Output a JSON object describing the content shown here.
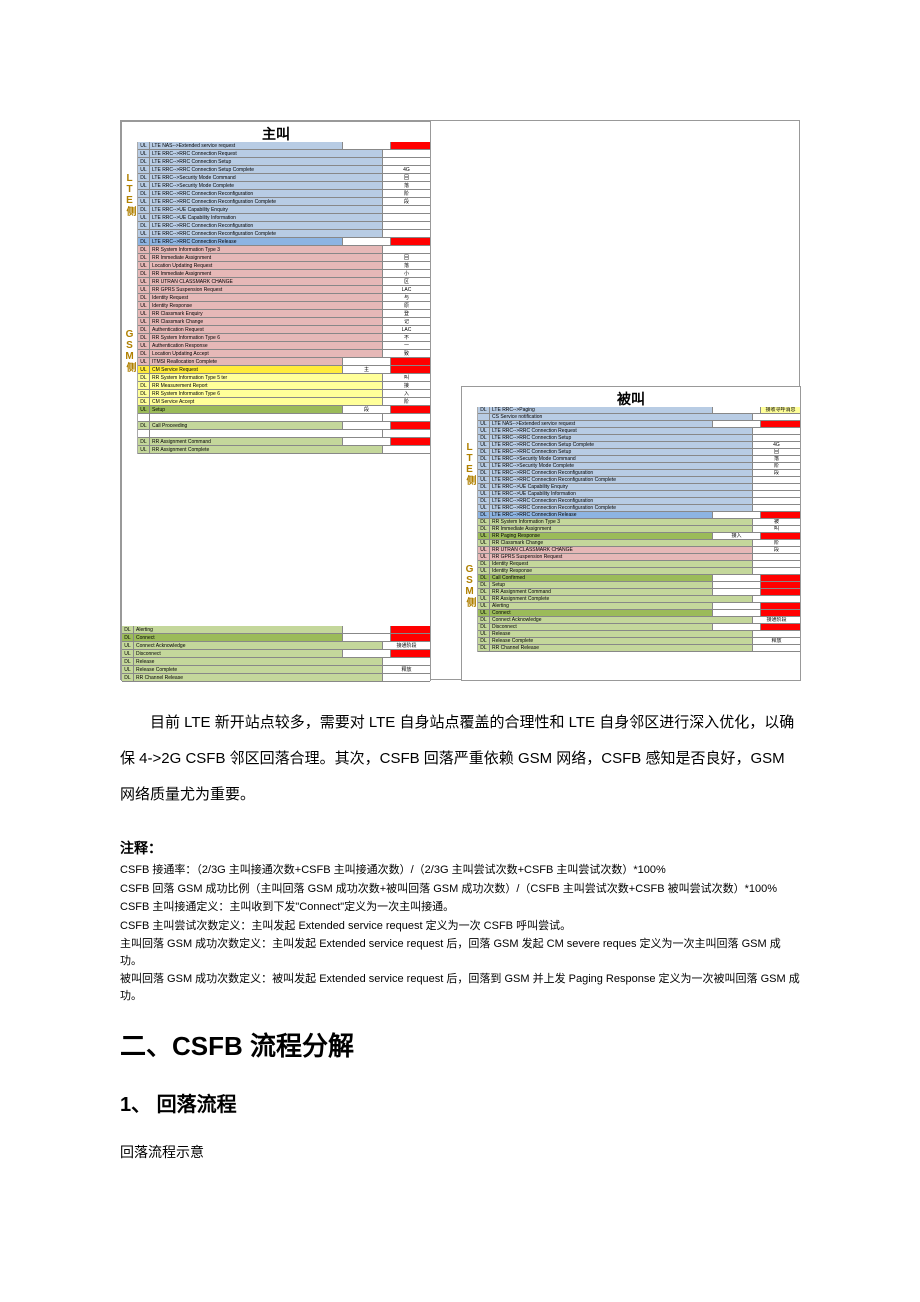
{
  "colors": {
    "blue": "#b8cce4",
    "bluedeep": "#8db4e2",
    "green": "#c4d79b",
    "greendeep": "#9bbb59",
    "pink": "#e6b8b7",
    "yellow": "#ffff99",
    "yelloworange": "#ffeb3b",
    "red": "#ff0000",
    "white": "#ffffff",
    "label_gold": "#b08000"
  },
  "caller": {
    "title": "主叫",
    "lte_label": "LTE侧",
    "gsm_label": "GSM侧",
    "lte_rows": [
      {
        "dir": "UL",
        "msg": "LTE NAS-->Extended service request",
        "c": "blue",
        "badge": "",
        "bc": "red",
        "phase": ""
      },
      {
        "dir": "UL",
        "msg": "LTE RRC-->RRC Connection Request",
        "c": "blue",
        "phase": ""
      },
      {
        "dir": "DL",
        "msg": "LTE RRC-->RRC Connection Setup",
        "c": "blue",
        "phase": ""
      },
      {
        "dir": "UL",
        "msg": "LTE RRC-->RRC Connection Setup Complete",
        "c": "blue",
        "phase": "4G"
      },
      {
        "dir": "DL",
        "msg": "LTE RRC-->Security Mode Command",
        "c": "blue",
        "phase": "回"
      },
      {
        "dir": "UL",
        "msg": "LTE RRC-->Security Mode Complete",
        "c": "blue",
        "phase": "落"
      },
      {
        "dir": "DL",
        "msg": "LTE RRC-->RRC Connection Reconfiguration",
        "c": "blue",
        "phase": "阶"
      },
      {
        "dir": "UL",
        "msg": "LTE RRC-->RRC Connection Reconfiguration Complete",
        "c": "blue",
        "phase": "段"
      },
      {
        "dir": "DL",
        "msg": "LTE RRC-->UE Capability Enquiry",
        "c": "blue",
        "phase": ""
      },
      {
        "dir": "UL",
        "msg": "LTE RRC-->UE Capability Information",
        "c": "blue",
        "phase": ""
      },
      {
        "dir": "DL",
        "msg": "LTE RRC-->RRC Connection Reconfiguration",
        "c": "blue",
        "phase": ""
      },
      {
        "dir": "UL",
        "msg": "LTE RRC-->RRC Connection Reconfiguration Complete",
        "c": "blue",
        "phase": ""
      },
      {
        "dir": "DL",
        "msg": "LTE RRC-->RRC Connection Release",
        "c": "bluedeep",
        "badge": "",
        "bc": "red",
        "phase": ""
      }
    ],
    "gsm_rows": [
      {
        "dir": "DL",
        "msg": "RR System Information Type 3",
        "c": "pink",
        "phase": ""
      },
      {
        "dir": "DL",
        "msg": "RR Immediate Assignment",
        "c": "pink",
        "phase": "回"
      },
      {
        "dir": "UL",
        "msg": "Location Updating Request",
        "c": "pink",
        "phase": "落"
      },
      {
        "dir": "DL",
        "msg": "RR Immediate Assignment",
        "c": "pink",
        "phase": "小"
      },
      {
        "dir": "UL",
        "msg": "RR UTRAN CLASSMARK CHANGE",
        "c": "pink",
        "phase": "区"
      },
      {
        "dir": "UL",
        "msg": "RR GPRS Suspension Request",
        "c": "pink",
        "phase": "LAC"
      },
      {
        "dir": "DL",
        "msg": "Identity Request",
        "c": "pink",
        "phase": "与"
      },
      {
        "dir": "UL",
        "msg": "Identity Response",
        "c": "pink",
        "phase": "原"
      },
      {
        "dir": "UL",
        "msg": "RR Classmark Enquiry",
        "c": "pink",
        "phase": "登"
      },
      {
        "dir": "UL",
        "msg": "RR Classmark Change",
        "c": "pink",
        "phase": "记"
      },
      {
        "dir": "DL",
        "msg": "Authentication Request",
        "c": "pink",
        "phase": "LAC"
      },
      {
        "dir": "DL",
        "msg": "RR System Information Type 6",
        "c": "pink",
        "phase": "不"
      },
      {
        "dir": "UL",
        "msg": "Authentication Response",
        "c": "pink",
        "phase": "一"
      },
      {
        "dir": "DL",
        "msg": "Location Updating Accept",
        "c": "pink",
        "phase": "致"
      },
      {
        "dir": "UL",
        "msg": "ITMSI Reallocation Complete",
        "c": "pink",
        "badge": "",
        "bc": "red",
        "phase": ""
      },
      {
        "dir": "UL",
        "msg": "CM Service Request",
        "c": "yelloworange",
        "badge": "",
        "bc": "red",
        "phase": "主"
      },
      {
        "dir": "DL",
        "msg": "RR System Information Type 5 ter",
        "c": "yellow",
        "phase": "叫"
      },
      {
        "dir": "DL",
        "msg": "RR Measurement Report",
        "c": "yellow",
        "phase": "接"
      },
      {
        "dir": "DL",
        "msg": "RR System Information Type 6",
        "c": "yellow",
        "phase": "入"
      },
      {
        "dir": "DL",
        "msg": "CM Service Accept",
        "c": "yellow",
        "phase": "阶"
      },
      {
        "dir": "UL",
        "msg": "Setup",
        "c": "greendeep",
        "badge": "",
        "bc": "red",
        "phase": "段"
      },
      {
        "dir": "",
        "msg": "",
        "c": "white",
        "phase": ""
      },
      {
        "dir": "DL",
        "msg": "Call Proceeding",
        "c": "green",
        "badge": "",
        "bc": "red",
        "phase": ""
      },
      {
        "dir": "",
        "msg": "",
        "c": "white",
        "phase": ""
      },
      {
        "dir": "DL",
        "msg": "RR Assignment Command",
        "c": "green",
        "badge": "",
        "bc": "red",
        "phase": ""
      },
      {
        "dir": "UL",
        "msg": "RR Assignment Complete",
        "c": "green",
        "phase": ""
      }
    ],
    "tail_rows": [
      {
        "dir": "DL",
        "msg": "Alerting",
        "c": "green",
        "badge": "",
        "bc": "red",
        "phase": ""
      },
      {
        "dir": "DL",
        "msg": "Connect",
        "c": "greendeep",
        "badge": "",
        "bc": "red",
        "phase": ""
      },
      {
        "dir": "UL",
        "msg": "Connect Acknowledge",
        "c": "green",
        "phase": "接通阶段"
      },
      {
        "dir": "UL",
        "msg": "Disconnect",
        "c": "green",
        "badge": "",
        "bc": "red",
        "phase": ""
      },
      {
        "dir": "DL",
        "msg": "Release",
        "c": "green",
        "phase": ""
      },
      {
        "dir": "UL",
        "msg": "Release Complete",
        "c": "green",
        "phase": "释放"
      },
      {
        "dir": "DL",
        "msg": "RR Channel Release",
        "c": "green",
        "phase": ""
      }
    ]
  },
  "callee": {
    "title": "被叫",
    "lte_label": "LTE侧",
    "gsm_label": "GSM侧",
    "lte_rows": [
      {
        "dir": "DL",
        "msg": "LTE RRC-->Paging",
        "c": "blue",
        "phase": "",
        "badge": "接收寻呼消息",
        "bc": "yellow"
      },
      {
        "dir": "",
        "msg": "CS Service notification",
        "c": "blue",
        "phase": ""
      },
      {
        "dir": "UL",
        "msg": "LTE NAS-->Extended service request",
        "c": "blue",
        "badge": "",
        "bc": "red",
        "phase": ""
      },
      {
        "dir": "UL",
        "msg": "LTE RRC-->RRC Connection Request",
        "c": "blue",
        "phase": ""
      },
      {
        "dir": "DL",
        "msg": "LTE RRC-->RRC Connection Setup",
        "c": "blue",
        "phase": ""
      },
      {
        "dir": "UL",
        "msg": "LTE RRC-->RRC Connection Setup Complete",
        "c": "blue",
        "phase": "4G"
      },
      {
        "dir": "DL",
        "msg": "LTE RRC-->RRC Connection Setup",
        "c": "blue",
        "phase": "回"
      },
      {
        "dir": "DL",
        "msg": "LTE RRC-->Security Mode Command",
        "c": "blue",
        "phase": "落"
      },
      {
        "dir": "UL",
        "msg": "LTE RRC-->Security Mode Complete",
        "c": "blue",
        "phase": "阶"
      },
      {
        "dir": "DL",
        "msg": "LTE RRC-->RRC Connection Reconfiguration",
        "c": "blue",
        "phase": "段"
      },
      {
        "dir": "UL",
        "msg": "LTE RRC-->RRC Connection Reconfiguration Complete",
        "c": "blue",
        "phase": ""
      },
      {
        "dir": "DL",
        "msg": "LTE RRC-->UE Capability Enquiry",
        "c": "blue",
        "phase": ""
      },
      {
        "dir": "UL",
        "msg": "LTE RRC-->UE Capability Information",
        "c": "blue",
        "phase": ""
      },
      {
        "dir": "DL",
        "msg": "LTE RRC-->RRC Connection Reconfiguration",
        "c": "blue",
        "phase": ""
      },
      {
        "dir": "UL",
        "msg": "LTE RRC-->RRC Connection Reconfiguration Complete",
        "c": "blue",
        "phase": ""
      },
      {
        "dir": "DL",
        "msg": "LTE RRC-->RRC Connection Release",
        "c": "bluedeep",
        "badge": "",
        "bc": "red",
        "phase": ""
      }
    ],
    "gsm_rows": [
      {
        "dir": "DL",
        "msg": "RR System Information Type 3",
        "c": "green",
        "phase": "被"
      },
      {
        "dir": "DL",
        "msg": "RR Immediate Assignment",
        "c": "green",
        "phase": "叫"
      },
      {
        "dir": "UL",
        "msg": "RR Paging Response",
        "c": "greendeep",
        "badge": "",
        "bc": "red",
        "phase": "接入"
      },
      {
        "dir": "UL",
        "msg": "RR Classmark Change",
        "c": "green",
        "phase": "阶"
      },
      {
        "dir": "UL",
        "msg": "RR UTRAN CLASSMARK CHANGE",
        "c": "pink",
        "phase": "段"
      },
      {
        "dir": "UL",
        "msg": "RR GPRS Suspension Request",
        "c": "pink",
        "phase": ""
      },
      {
        "dir": "DL",
        "msg": "Identity Request",
        "c": "green",
        "phase": ""
      },
      {
        "dir": "UL",
        "msg": "Identity Response",
        "c": "green",
        "phase": ""
      },
      {
        "dir": "DL",
        "msg": "Call Confirmed",
        "c": "greendeep",
        "badge": "",
        "bc": "red",
        "phase": ""
      },
      {
        "dir": "DL",
        "msg": "Setup",
        "c": "green",
        "badge": "",
        "bc": "red",
        "phase": ""
      },
      {
        "dir": "DL",
        "msg": "RR Assignment Command",
        "c": "green",
        "badge": "",
        "bc": "red",
        "phase": ""
      },
      {
        "dir": "UL",
        "msg": "RR Assignment Complete",
        "c": "green",
        "phase": ""
      },
      {
        "dir": "UL",
        "msg": "Alerting",
        "c": "green",
        "badge": "",
        "bc": "red",
        "phase": ""
      },
      {
        "dir": "UL",
        "msg": "Connect",
        "c": "greendeep",
        "badge": "",
        "bc": "red",
        "phase": ""
      },
      {
        "dir": "DL",
        "msg": "Connect Acknowledge",
        "c": "green",
        "phase": "接通阶段"
      },
      {
        "dir": "DL",
        "msg": "Disconnect",
        "c": "green",
        "badge": "",
        "bc": "red",
        "phase": ""
      },
      {
        "dir": "UL",
        "msg": "Release",
        "c": "green",
        "phase": ""
      },
      {
        "dir": "DL",
        "msg": "Release Complete",
        "c": "green",
        "phase": "释放"
      },
      {
        "dir": "DL",
        "msg": "RR Channel Release",
        "c": "green",
        "phase": ""
      }
    ]
  },
  "body_paragraph": "目前 LTE 新开站点较多，需要对 LTE 自身站点覆盖的合理性和 LTE 自身邻区进行深入优化，以确保 4->2G CSFB 邻区回落合理。其次，CSFB 回落严重依赖 GSM 网络，CSFB 感知是否良好，GSM 网络质量尤为重要。",
  "notes_header": "注释：",
  "notes": [
    "CSFB 接通率：（2/3G 主叫接通次数+CSFB 主叫接通次数）/（2/3G 主叫尝试次数+CSFB 主叫尝试次数）*100%",
    "CSFB 回落 GSM 成功比例（主叫回落 GSM 成功次数+被叫回落 GSM 成功次数）/（CSFB 主叫尝试次数+CSFB 被叫尝试次数）*100%",
    "CSFB 主叫接通定义：主叫收到下发\"Connect\"定义为一次主叫接通。",
    "CSFB 主叫尝试次数定义：主叫发起 Extended service request 定义为一次 CSFB 呼叫尝试。",
    "主叫回落 GSM 成功次数定义：主叫发起 Extended service request 后，回落 GSM 发起 CM severe reques 定义为一次主叫回落 GSM 成功。",
    "被叫回落 GSM 成功次数定义：被叫发起 Extended service request 后，回落到 GSM 并上发 Paging Response 定义为一次被叫回落 GSM 成功。"
  ],
  "heading_main": "二、CSFB 流程分解",
  "heading_sub": "1、  回落流程",
  "last_line": "回落流程示意"
}
